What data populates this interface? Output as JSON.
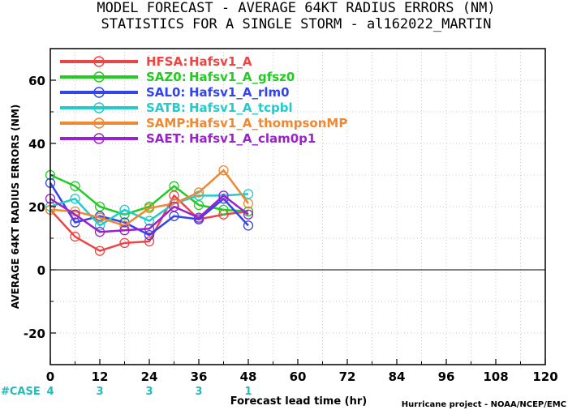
{
  "title": {
    "line1": "MODEL FORECAST - AVERAGE 64KT RADIUS ERRORS (NM)",
    "line2": "STATISTICS FOR A SINGLE STORM - al162022_MARTIN"
  },
  "credit": "Hurricane project - NOAA/NCEP/EMC",
  "case_label": "#CASE",
  "case_color": "#22bbbb",
  "case_counts": [
    {
      "x": 0,
      "n": "4"
    },
    {
      "x": 12,
      "n": "3"
    },
    {
      "x": 24,
      "n": "3"
    },
    {
      "x": 36,
      "n": "3"
    },
    {
      "x": 48,
      "n": "1"
    }
  ],
  "chart_data": {
    "type": "line",
    "title": "MODEL FORECAST - AVERAGE 64KT RADIUS ERRORS (NM)",
    "subtitle": "STATISTICS FOR A SINGLE STORM - al162022_MARTIN",
    "xlabel": "Forecast lead time (hr)",
    "ylabel": "AVERAGE 64KT RADIUS ERRORS (NM)",
    "xlim": [
      0,
      120
    ],
    "ylim": [
      -30,
      70
    ],
    "xticks": [
      0,
      12,
      24,
      36,
      48,
      60,
      72,
      84,
      96,
      108,
      120
    ],
    "yticks": [
      -20,
      0,
      20,
      40,
      60
    ],
    "grid": true,
    "legend_position": "top-left",
    "x": [
      0,
      6,
      12,
      18,
      24,
      30,
      36,
      42,
      48
    ],
    "series": [
      {
        "label": "HFSA:",
        "name": "Hafsv1_A",
        "color": "#ee4444",
        "values": [
          19,
          10.5,
          6,
          8.5,
          9,
          23.5,
          16,
          17.5,
          18.5
        ]
      },
      {
        "label": "SAZ0:",
        "name": "Hafsv1_A_gfsz0",
        "color": "#22cc22",
        "values": [
          30,
          26.5,
          20,
          17.5,
          20,
          26.5,
          20.5,
          19,
          18.5
        ]
      },
      {
        "label": "SAL0:",
        "name": "Hafsv1_A_rlm0",
        "color": "#3344ee",
        "values": [
          27.5,
          15,
          17,
          15,
          11,
          17,
          16,
          22.5,
          14
        ]
      },
      {
        "label": "SATB:",
        "name": "Hafsv1_A_tcpbl",
        "color": "#22cccc",
        "values": [
          20,
          22.5,
          14,
          19,
          15.5,
          21,
          23.5,
          23.5,
          24
        ]
      },
      {
        "label": "SAMP:",
        "name": "Hafsv1_A_thompsonMP",
        "color": "#ee8833",
        "values": [
          19,
          18.5,
          16.5,
          14,
          19.5,
          21,
          24.5,
          31.5,
          21
        ]
      },
      {
        "label": "SAET:",
        "name": "Hafsv1_A_clam0p1",
        "color": "#9922cc",
        "values": [
          22.5,
          17.5,
          12,
          12.5,
          13,
          20,
          16.5,
          23.5,
          17.5
        ]
      }
    ]
  }
}
